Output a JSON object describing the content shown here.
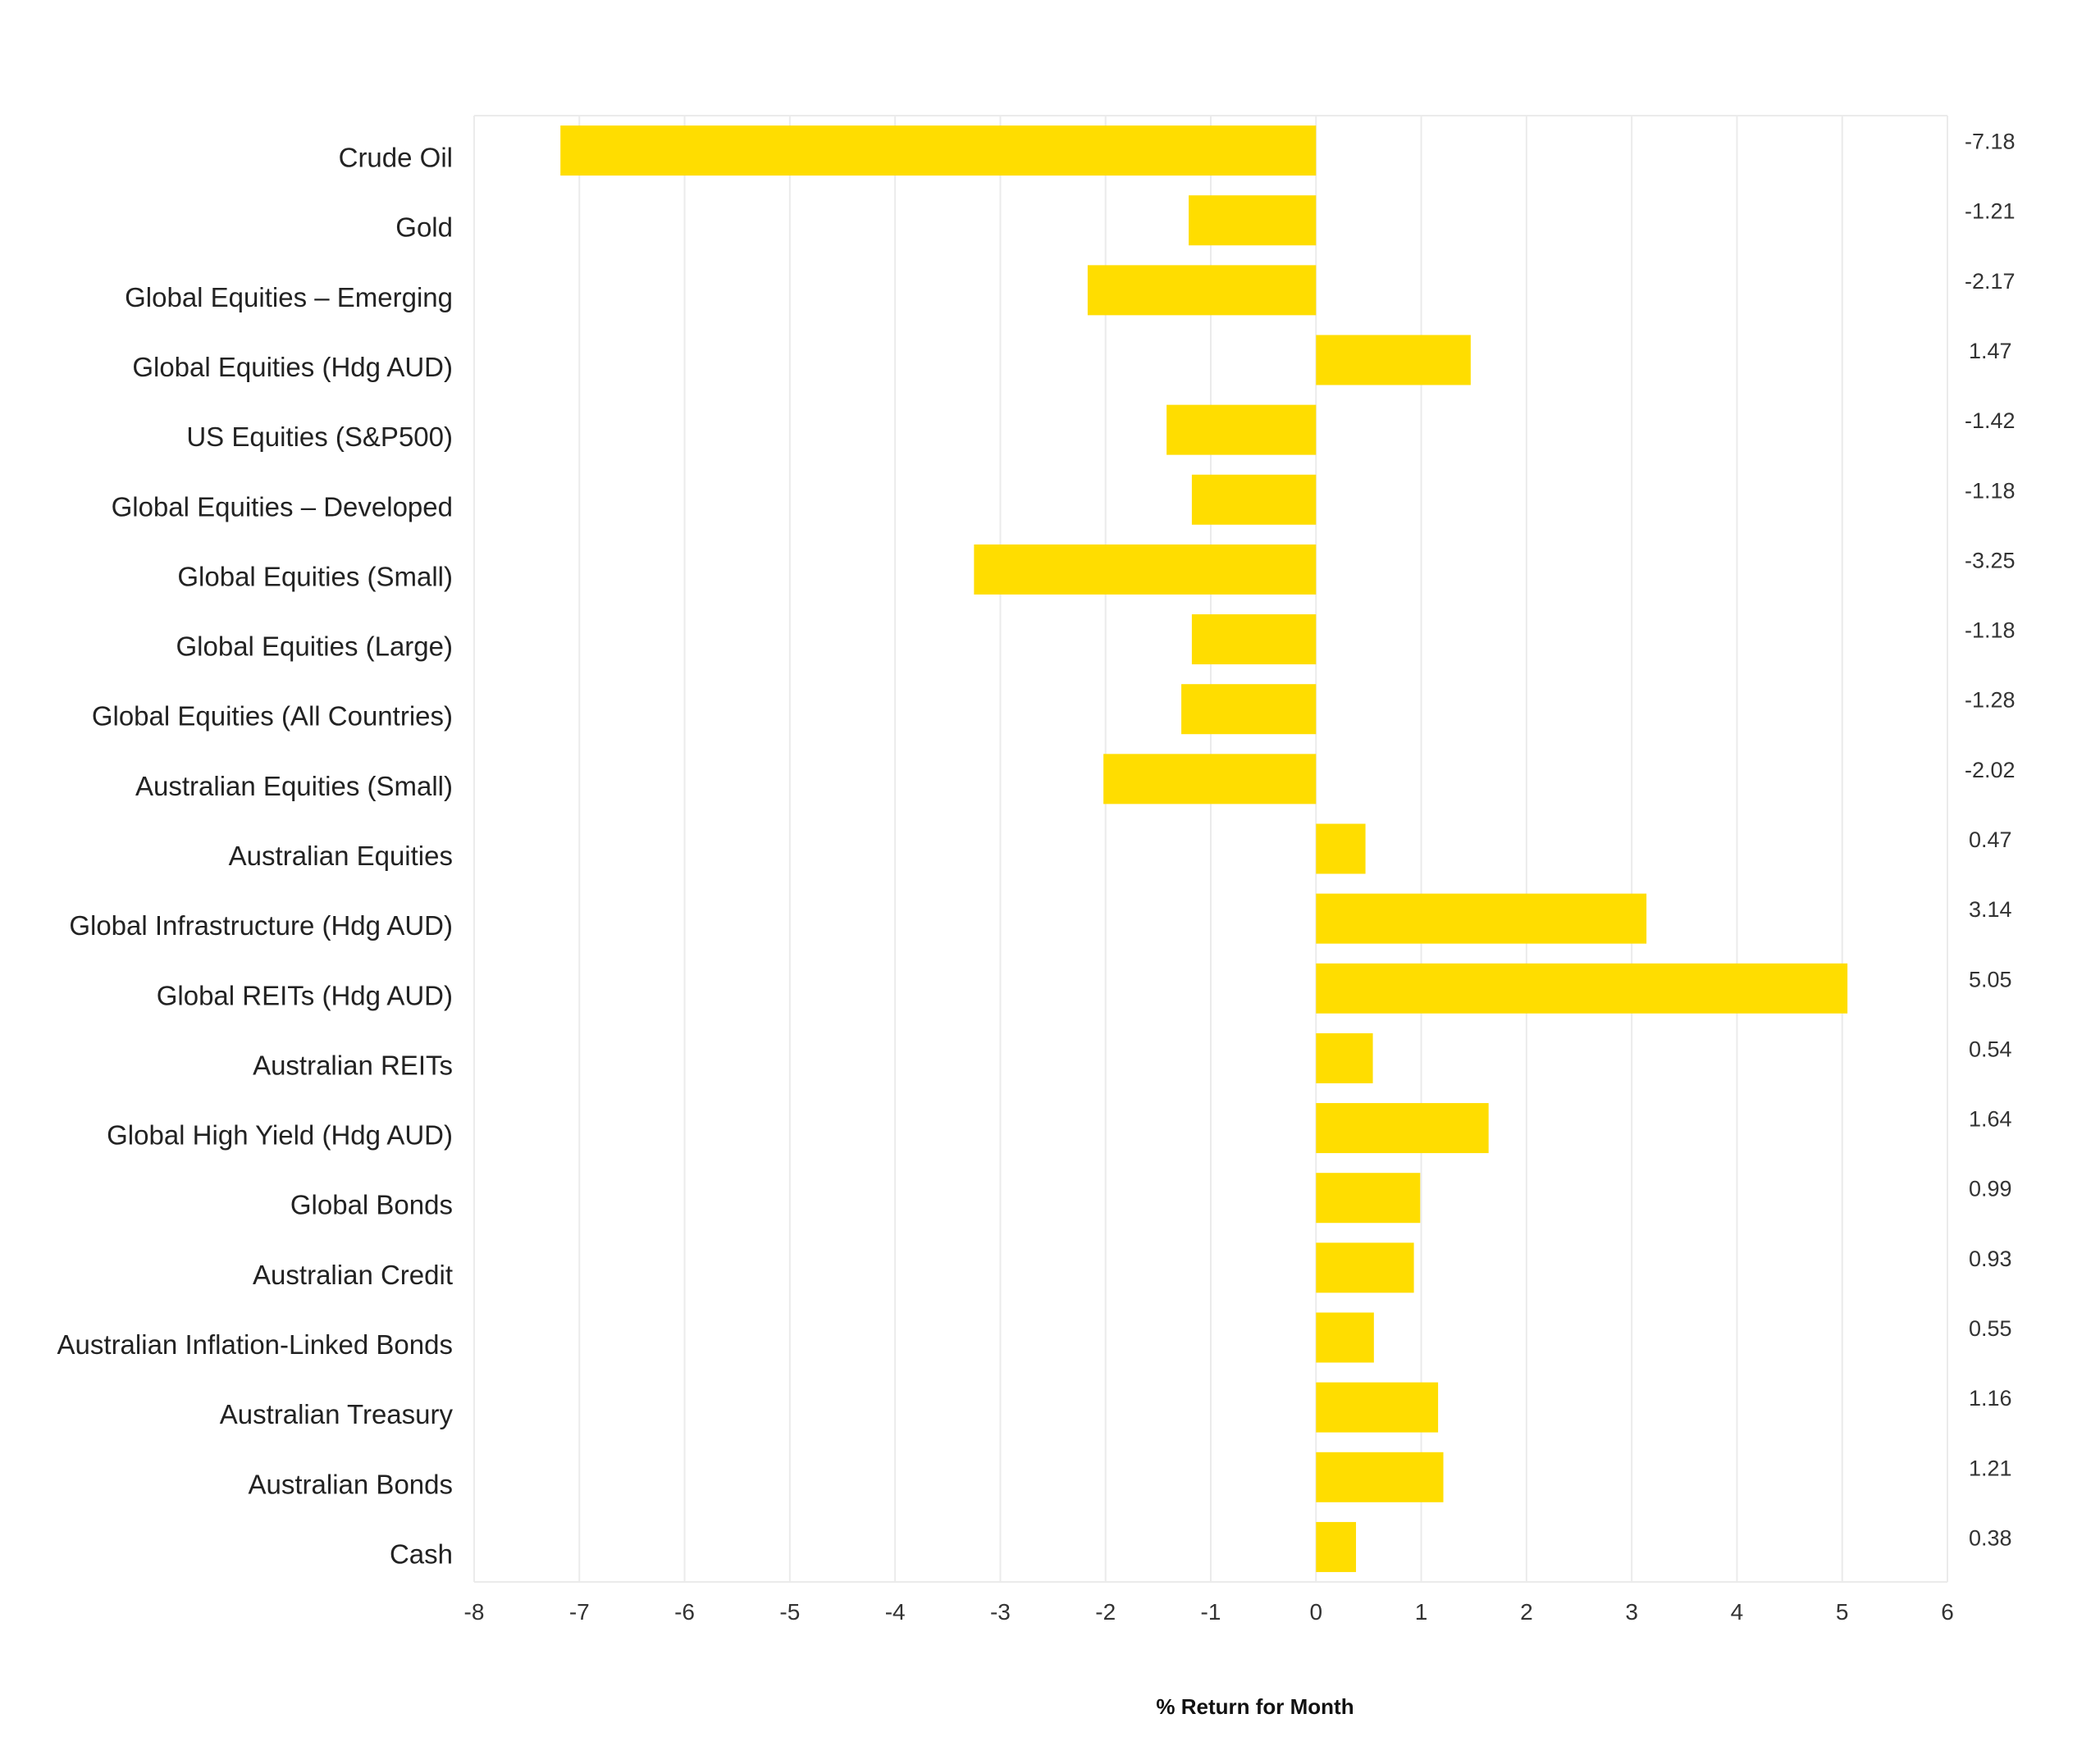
{
  "chart_data": {
    "type": "bar",
    "orientation": "horizontal",
    "categories": [
      "Crude Oil",
      "Gold",
      "Global Equities – Emerging",
      "Global Equities (Hdg AUD)",
      "US Equities (S&P500)",
      "Global Equities – Developed",
      "Global Equities (Small)",
      "Global Equities (Large)",
      "Global Equities (All Countries)",
      "Australian Equities (Small)",
      "Australian Equities",
      "Global Infrastructure (Hdg AUD)",
      "Global REITs (Hdg AUD)",
      "Australian REITs",
      "Global High Yield (Hdg AUD)",
      "Global Bonds",
      "Australian Credit",
      "Australian Inflation-Linked Bonds",
      "Australian Treasury",
      "Australian Bonds",
      "Cash"
    ],
    "values": [
      -7.18,
      -1.21,
      -2.17,
      1.47,
      -1.42,
      -1.18,
      -3.25,
      -1.18,
      -1.28,
      -2.02,
      0.47,
      3.14,
      5.05,
      0.54,
      1.64,
      0.99,
      0.93,
      0.55,
      1.16,
      1.21,
      0.38
    ],
    "value_labels": [
      "-7.18",
      "-1.21",
      "-2.17",
      "1.47",
      "-1.42",
      "-1.18",
      "-3.25",
      "-1.18",
      "-1.28",
      "-2.02",
      "0.47",
      "3.14",
      "5.05",
      "0.54",
      "1.64",
      "0.99",
      "0.93",
      "0.55",
      "1.16",
      "1.21",
      "0.38"
    ],
    "xlabel": "% Return for Month",
    "ylabel": "",
    "title": "",
    "xlim": [
      -8,
      6
    ],
    "xticks": [
      "-8",
      "-7",
      "-6",
      "-5",
      "-4",
      "-3",
      "-2",
      "-1",
      "0",
      "1",
      "2",
      "3",
      "4",
      "5",
      "6"
    ],
    "grid": true,
    "bar_color": "#FFDD00",
    "grid_color": "#EBEBEB"
  }
}
